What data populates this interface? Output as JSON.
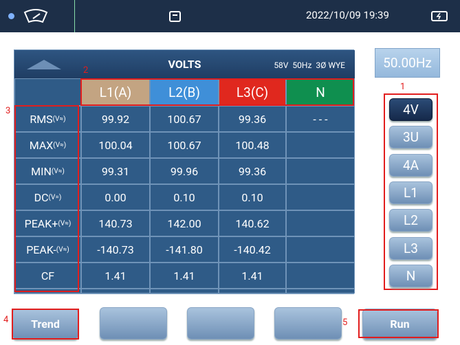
{
  "status_bar": {
    "datetime": "2022/10/09 19:39"
  },
  "frequency": "50.00Hz",
  "table": {
    "title": "VOLTS",
    "info": "58V  50Hz  3Ø WYE",
    "columns": [
      "L1(A)",
      "L2(B)",
      "L3(C)",
      "N"
    ],
    "rows": [
      {
        "name": "RMS",
        "unit": "(V≈)",
        "values": [
          "99.92",
          "100.67",
          "99.36",
          "- - -"
        ]
      },
      {
        "name": "MAX",
        "unit": "(V≈)",
        "values": [
          "100.04",
          "100.67",
          "100.48"
        ]
      },
      {
        "name": "MIN",
        "unit": "(V≈)",
        "values": [
          "99.31",
          "99.96",
          "99.36"
        ]
      },
      {
        "name": "DC",
        "unit": "(V=)",
        "values": [
          "0.00",
          "0.10",
          "0.10"
        ]
      },
      {
        "name": "PEAK+",
        "unit": "(V≈)",
        "values": [
          "140.73",
          "142.00",
          "140.62"
        ]
      },
      {
        "name": "PEAK-",
        "unit": "(V≈)",
        "values": [
          "-140.73",
          "-141.80",
          "-140.42"
        ]
      },
      {
        "name": "CF",
        "unit": "",
        "values": [
          "1.41",
          "1.41",
          "1.41"
        ]
      }
    ]
  },
  "side_buttons": [
    "4V",
    "3U",
    "4A",
    "L1",
    "L2",
    "L3",
    "N"
  ],
  "bottom_buttons": {
    "left": "Trend",
    "right": "Run"
  },
  "annotations": [
    "1",
    "2",
    "3",
    "4",
    "5"
  ]
}
